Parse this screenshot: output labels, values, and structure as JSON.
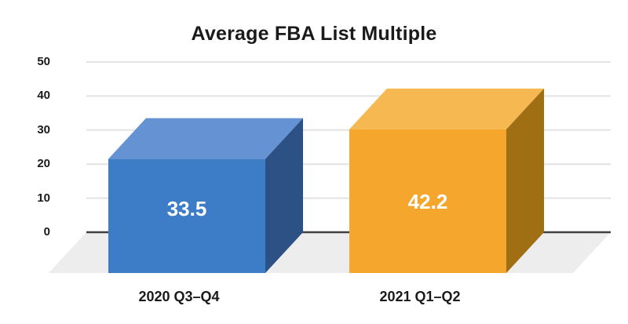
{
  "chart_data": {
    "type": "bar",
    "variant": "3d-column",
    "title": "Average FBA List Multiple",
    "categories": [
      "2020 Q3–Q4",
      "2021 Q1–Q2"
    ],
    "values": [
      33.5,
      42.2
    ],
    "value_labels": [
      "33.5",
      "42.2"
    ],
    "xlabel": "",
    "ylabel": "",
    "ylim": [
      0,
      50
    ],
    "ytick_interval": 10,
    "ytick_labels": [
      "50",
      "40",
      "30",
      "20",
      "10",
      "0"
    ],
    "grid": true,
    "legend": "none",
    "bar_colors": [
      {
        "name": "blue",
        "front": "#3d7cc7",
        "top": "#6492d3",
        "side": "#2b5185"
      },
      {
        "name": "orange",
        "front": "#f5a62d",
        "top": "#f6b850",
        "side": "#a06f13"
      }
    ],
    "value_label_color": "#ffffff",
    "floor_color": "#ededed",
    "gridline_color": "#e3e3e3",
    "zero_line_color": "#404040",
    "text_color": "#1a1a1a",
    "background_color": "#ffffff"
  }
}
